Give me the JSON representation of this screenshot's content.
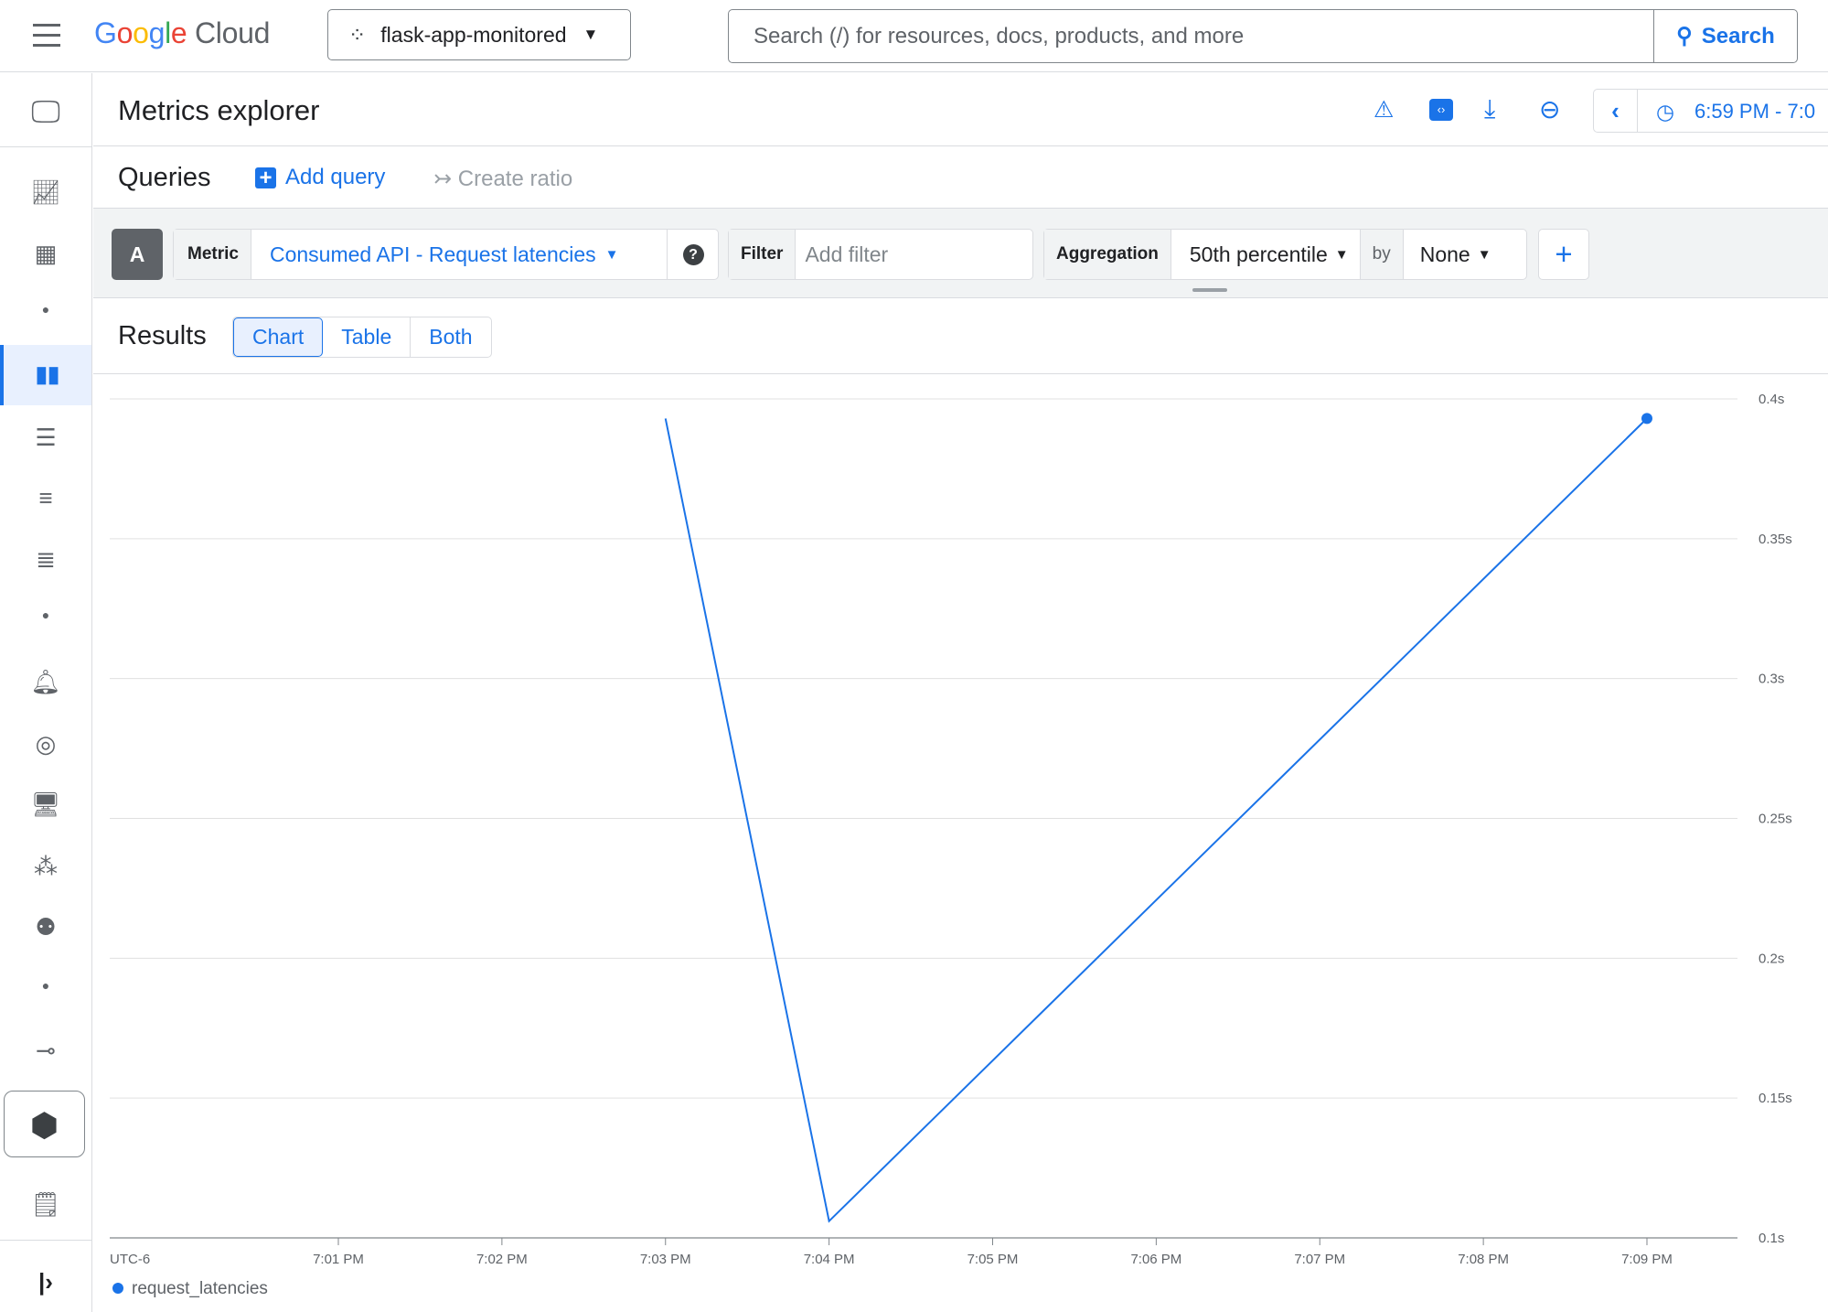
{
  "header": {
    "logo": "Google Cloud",
    "project": "flask-app-monitored",
    "search_placeholder": "Search (/) for resources, docs, products, and more",
    "search_button": "Search"
  },
  "page": {
    "title": "Metrics explorer",
    "time_range": "6:59 PM - 7:0"
  },
  "queries": {
    "title": "Queries",
    "add_query": "Add query",
    "create_ratio": "Create ratio",
    "query": {
      "letter": "A",
      "metric_label": "Metric",
      "metric_value": "Consumed API - Request latencies",
      "filter_label": "Filter",
      "filter_placeholder": "Add filter",
      "aggregation_label": "Aggregation",
      "aggregation_value": "50th percentile",
      "by_label": "by",
      "by_value": "None"
    }
  },
  "results": {
    "title": "Results",
    "tabs": [
      "Chart",
      "Table",
      "Both"
    ],
    "active_tab": "Chart"
  },
  "colors": {
    "accent": "#1a73e8",
    "series": "#1a73e8"
  },
  "chart_data": {
    "type": "line",
    "timezone_label": "UTC-6",
    "x_ticks": [
      "7:01 PM",
      "7:02 PM",
      "7:03 PM",
      "7:04 PM",
      "7:05 PM",
      "7:06 PM",
      "7:07 PM",
      "7:08 PM",
      "7:09 PM"
    ],
    "y_ticks": [
      "0.1s",
      "0.15s",
      "0.2s",
      "0.25s",
      "0.3s",
      "0.35s",
      "0.4s"
    ],
    "ylim": [
      0.1,
      0.4
    ],
    "grid": true,
    "legend": "bottom-left",
    "series": [
      {
        "name": "request_latencies",
        "x": [
          "7:03 PM",
          "7:04 PM",
          "7:09 PM"
        ],
        "y": [
          0.393,
          0.106,
          0.393
        ]
      }
    ]
  }
}
